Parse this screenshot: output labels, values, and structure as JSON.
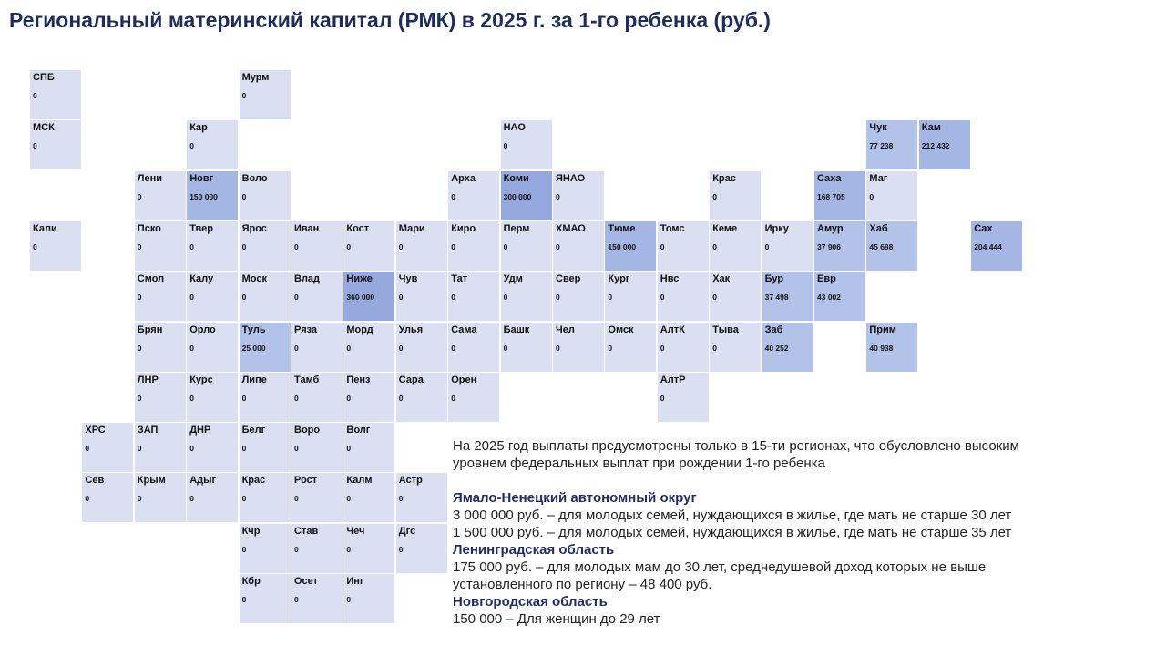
{
  "title": "Региональный материнский капитал (РМК)  в 2025 г. за 1-го ребенка (руб.)",
  "colors": {
    "zero": "#dae0f2",
    "low": "#b3c2e8",
    "mid": "#a4b6e4",
    "high": "#95a9de",
    "text": "#111111",
    "title": "#1f2d5c"
  },
  "chart_data": {
    "type": "tile-map",
    "title": "Региональный материнский капитал (РМК)  в 2025 г. за 1-го ребенка (руб.)",
    "unit": "руб.",
    "regions": [
      {
        "name": "СПБ",
        "value_label": "0",
        "value": 0,
        "row": 0,
        "col": 0
      },
      {
        "name": "Мурм",
        "value_label": "0",
        "value": 0,
        "row": 0,
        "col": 4
      },
      {
        "name": "МСК",
        "value_label": "0",
        "value": 0,
        "row": 1,
        "col": 0
      },
      {
        "name": "Кар",
        "value_label": "0",
        "value": 0,
        "row": 1,
        "col": 3
      },
      {
        "name": "НАО",
        "value_label": "0",
        "value": 0,
        "row": 1,
        "col": 9
      },
      {
        "name": "Чук",
        "value_label": "77 238",
        "value": 77238,
        "row": 1,
        "col": 16
      },
      {
        "name": "Кам",
        "value_label": "212 432",
        "value": 212432,
        "row": 1,
        "col": 17
      },
      {
        "name": "Лени",
        "value_label": "0",
        "value": 0,
        "row": 2,
        "col": 2
      },
      {
        "name": "Новг",
        "value_label": "150 000",
        "value": 150000,
        "row": 2,
        "col": 3
      },
      {
        "name": "Воло",
        "value_label": "0",
        "value": 0,
        "row": 2,
        "col": 4
      },
      {
        "name": "Арха",
        "value_label": "0",
        "value": 0,
        "row": 2,
        "col": 8
      },
      {
        "name": "Коми",
        "value_label": "300 000",
        "value": 300000,
        "row": 2,
        "col": 9
      },
      {
        "name": "ЯНАО",
        "value_label": "0",
        "value": 0,
        "row": 2,
        "col": 10
      },
      {
        "name": "Крас",
        "value_label": "0",
        "value": 0,
        "row": 2,
        "col": 13
      },
      {
        "name": "Саха",
        "value_label": "168 705",
        "value": 168705,
        "row": 2,
        "col": 15
      },
      {
        "name": "Маг",
        "value_label": "0",
        "value": 0,
        "row": 2,
        "col": 16
      },
      {
        "name": "Кали",
        "value_label": "0",
        "value": 0,
        "row": 3,
        "col": 0
      },
      {
        "name": "Пско",
        "value_label": "0",
        "value": 0,
        "row": 3,
        "col": 2
      },
      {
        "name": "Твер",
        "value_label": "0",
        "value": 0,
        "row": 3,
        "col": 3
      },
      {
        "name": "Ярос",
        "value_label": "0",
        "value": 0,
        "row": 3,
        "col": 4
      },
      {
        "name": "Иван",
        "value_label": "0",
        "value": 0,
        "row": 3,
        "col": 5
      },
      {
        "name": "Кост",
        "value_label": "0",
        "value": 0,
        "row": 3,
        "col": 6
      },
      {
        "name": "Мари",
        "value_label": "0",
        "value": 0,
        "row": 3,
        "col": 7
      },
      {
        "name": "Киро",
        "value_label": "0",
        "value": 0,
        "row": 3,
        "col": 8
      },
      {
        "name": "Перм",
        "value_label": "0",
        "value": 0,
        "row": 3,
        "col": 9
      },
      {
        "name": "ХМАО",
        "value_label": "0",
        "value": 0,
        "row": 3,
        "col": 10
      },
      {
        "name": "Тюме",
        "value_label": "150 000",
        "value": 150000,
        "row": 3,
        "col": 11
      },
      {
        "name": "Томс",
        "value_label": "0",
        "value": 0,
        "row": 3,
        "col": 12
      },
      {
        "name": "Кеме",
        "value_label": "0",
        "value": 0,
        "row": 3,
        "col": 13
      },
      {
        "name": "Ирку",
        "value_label": "0",
        "value": 0,
        "row": 3,
        "col": 14
      },
      {
        "name": "Амур",
        "value_label": "37 906",
        "value": 37906,
        "row": 3,
        "col": 15
      },
      {
        "name": "Хаб",
        "value_label": "45 688",
        "value": 45688,
        "row": 3,
        "col": 16
      },
      {
        "name": "Сах",
        "value_label": "204 444",
        "value": 204444,
        "row": 3,
        "col": 18
      },
      {
        "name": "Смол",
        "value_label": "0",
        "value": 0,
        "row": 4,
        "col": 2
      },
      {
        "name": "Калу",
        "value_label": "0",
        "value": 0,
        "row": 4,
        "col": 3
      },
      {
        "name": "Моск",
        "value_label": "0",
        "value": 0,
        "row": 4,
        "col": 4
      },
      {
        "name": "Влад",
        "value_label": "0",
        "value": 0,
        "row": 4,
        "col": 5
      },
      {
        "name": "Ниже",
        "value_label": "360 000",
        "value": 360000,
        "row": 4,
        "col": 6
      },
      {
        "name": "Чув",
        "value_label": "0",
        "value": 0,
        "row": 4,
        "col": 7
      },
      {
        "name": "Тат",
        "value_label": "0",
        "value": 0,
        "row": 4,
        "col": 8
      },
      {
        "name": "Удм",
        "value_label": "0",
        "value": 0,
        "row": 4,
        "col": 9
      },
      {
        "name": "Свер",
        "value_label": "0",
        "value": 0,
        "row": 4,
        "col": 10
      },
      {
        "name": "Кург",
        "value_label": "0",
        "value": 0,
        "row": 4,
        "col": 11
      },
      {
        "name": "Нвс",
        "value_label": "0",
        "value": 0,
        "row": 4,
        "col": 12
      },
      {
        "name": "Хак",
        "value_label": "0",
        "value": 0,
        "row": 4,
        "col": 13
      },
      {
        "name": "Бур",
        "value_label": "37 498",
        "value": 37498,
        "row": 4,
        "col": 14
      },
      {
        "name": "Евр",
        "value_label": "43 002",
        "value": 43002,
        "row": 4,
        "col": 15
      },
      {
        "name": "Брян",
        "value_label": "0",
        "value": 0,
        "row": 5,
        "col": 2
      },
      {
        "name": "Орло",
        "value_label": "0",
        "value": 0,
        "row": 5,
        "col": 3
      },
      {
        "name": "Туль",
        "value_label": "25 000",
        "value": 25000,
        "row": 5,
        "col": 4
      },
      {
        "name": "Ряза",
        "value_label": "0",
        "value": 0,
        "row": 5,
        "col": 5
      },
      {
        "name": "Морд",
        "value_label": "0",
        "value": 0,
        "row": 5,
        "col": 6
      },
      {
        "name": "Улья",
        "value_label": "0",
        "value": 0,
        "row": 5,
        "col": 7
      },
      {
        "name": "Сама",
        "value_label": "0",
        "value": 0,
        "row": 5,
        "col": 8
      },
      {
        "name": "Башк",
        "value_label": "0",
        "value": 0,
        "row": 5,
        "col": 9
      },
      {
        "name": "Чел",
        "value_label": "0",
        "value": 0,
        "row": 5,
        "col": 10
      },
      {
        "name": "Омск",
        "value_label": "0",
        "value": 0,
        "row": 5,
        "col": 11
      },
      {
        "name": "АлтК",
        "value_label": "0",
        "value": 0,
        "row": 5,
        "col": 12
      },
      {
        "name": "Тыва",
        "value_label": "0",
        "value": 0,
        "row": 5,
        "col": 13
      },
      {
        "name": "Заб",
        "value_label": "40 252",
        "value": 40252,
        "row": 5,
        "col": 14
      },
      {
        "name": "Прим",
        "value_label": "40 938",
        "value": 40938,
        "row": 5,
        "col": 16
      },
      {
        "name": "ЛНР",
        "value_label": "0",
        "value": 0,
        "row": 6,
        "col": 2
      },
      {
        "name": "Курс",
        "value_label": "0",
        "value": 0,
        "row": 6,
        "col": 3
      },
      {
        "name": "Липе",
        "value_label": "0",
        "value": 0,
        "row": 6,
        "col": 4
      },
      {
        "name": "Тамб",
        "value_label": "0",
        "value": 0,
        "row": 6,
        "col": 5
      },
      {
        "name": "Пенз",
        "value_label": "0",
        "value": 0,
        "row": 6,
        "col": 6
      },
      {
        "name": "Сара",
        "value_label": "0",
        "value": 0,
        "row": 6,
        "col": 7
      },
      {
        "name": "Орен",
        "value_label": "0",
        "value": 0,
        "row": 6,
        "col": 8
      },
      {
        "name": "АлтР",
        "value_label": "0",
        "value": 0,
        "row": 6,
        "col": 12
      },
      {
        "name": "ХРС",
        "value_label": "0",
        "value": 0,
        "row": 7,
        "col": 1
      },
      {
        "name": "ЗАП",
        "value_label": "0",
        "value": 0,
        "row": 7,
        "col": 2
      },
      {
        "name": "ДНР",
        "value_label": "0",
        "value": 0,
        "row": 7,
        "col": 3
      },
      {
        "name": "Белг",
        "value_label": "0",
        "value": 0,
        "row": 7,
        "col": 4
      },
      {
        "name": "Воро",
        "value_label": "0",
        "value": 0,
        "row": 7,
        "col": 5
      },
      {
        "name": "Волг",
        "value_label": "0",
        "value": 0,
        "row": 7,
        "col": 6
      },
      {
        "name": "Сев",
        "value_label": "0",
        "value": 0,
        "row": 8,
        "col": 1
      },
      {
        "name": "Крым",
        "value_label": "0",
        "value": 0,
        "row": 8,
        "col": 2
      },
      {
        "name": "Адыг",
        "value_label": "0",
        "value": 0,
        "row": 8,
        "col": 3
      },
      {
        "name": "Крас",
        "value_label": "0",
        "value": 0,
        "row": 8,
        "col": 4
      },
      {
        "name": "Рост",
        "value_label": "0",
        "value": 0,
        "row": 8,
        "col": 5
      },
      {
        "name": "Калм",
        "value_label": "0",
        "value": 0,
        "row": 8,
        "col": 6
      },
      {
        "name": "Астр",
        "value_label": "0",
        "value": 0,
        "row": 8,
        "col": 7
      },
      {
        "name": "Кчр",
        "value_label": "0",
        "value": 0,
        "row": 9,
        "col": 4
      },
      {
        "name": "Став",
        "value_label": "0",
        "value": 0,
        "row": 9,
        "col": 5
      },
      {
        "name": "Чеч",
        "value_label": "0",
        "value": 0,
        "row": 9,
        "col": 6
      },
      {
        "name": "Дгс",
        "value_label": "0",
        "value": 0,
        "row": 9,
        "col": 7
      },
      {
        "name": "Кбр",
        "value_label": "0",
        "value": 0,
        "row": 10,
        "col": 4
      },
      {
        "name": "Осет",
        "value_label": "0",
        "value": 0,
        "row": 10,
        "col": 5
      },
      {
        "name": "Инг",
        "value_label": "0",
        "value": 0,
        "row": 10,
        "col": 6
      }
    ]
  },
  "notes": {
    "intro_line1": "На 2025 год выплаты предусмотрены только в 15-ти регионах, что обусловлено высоким",
    "intro_line2": "уровнем федеральных выплат при рождении 1-го ребенка",
    "yanao_header": "Ямало-Ненецкий автономный округ",
    "yanao_line1": "3 000 000 руб. – для молодых семей, нуждающихся в жилье, где мать не старше 30 лет",
    "yanao_line2": "1 500 000 руб. – для молодых семей, нуждающихся в жилье, где мать не старше 35 лет",
    "leningrad_header": "Ленинградская область",
    "leningrad_line1": "175 000 руб. – для молодых мам до 30 лет, среднедушевой доход которых не выше",
    "leningrad_line2": "установленного по региону – 48 400 руб.",
    "novgorod_header": "Новгородская область",
    "novgorod_line1": "150 000 – Для женщин до 29 лет"
  }
}
